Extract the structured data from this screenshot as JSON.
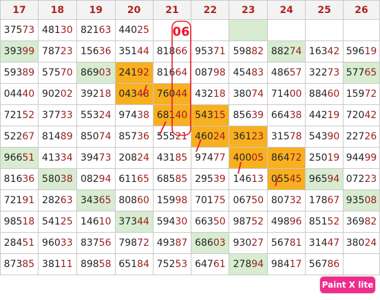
{
  "columns": [
    "17",
    "18",
    "19",
    "20",
    "21",
    "22",
    "23",
    "24",
    "25",
    "26"
  ],
  "rows": [
    [
      {
        "v": "37573"
      },
      {
        "v": "48130"
      },
      {
        "v": "82163"
      },
      {
        "v": "44025"
      },
      {
        "v": ""
      },
      {
        "v": ""
      },
      {
        "v": "",
        "bg": "green"
      },
      {
        "v": ""
      },
      {
        "v": ""
      },
      {
        "v": ""
      }
    ],
    [
      {
        "v": "39399",
        "bg": "green"
      },
      {
        "v": "78723"
      },
      {
        "v": "15636"
      },
      {
        "v": "35144"
      },
      {
        "v": "81866"
      },
      {
        "v": "95371"
      },
      {
        "v": "59882"
      },
      {
        "v": "88274",
        "bg": "green"
      },
      {
        "v": "16342"
      },
      {
        "v": "59619"
      }
    ],
    [
      {
        "v": "59389"
      },
      {
        "v": "57570"
      },
      {
        "v": "86903",
        "bg": "green"
      },
      {
        "v": "24192",
        "bg": "orange"
      },
      {
        "v": "81664"
      },
      {
        "v": "08798"
      },
      {
        "v": "45483"
      },
      {
        "v": "48657"
      },
      {
        "v": "32273"
      },
      {
        "v": "57765",
        "bg": "green"
      }
    ],
    [
      {
        "v": "04440"
      },
      {
        "v": "90202"
      },
      {
        "v": "39218"
      },
      {
        "v": "04348",
        "bg": "orange"
      },
      {
        "v": "76044",
        "bg": "orange"
      },
      {
        "v": "43218"
      },
      {
        "v": "38074"
      },
      {
        "v": "71400"
      },
      {
        "v": "88460"
      },
      {
        "v": "15972"
      }
    ],
    [
      {
        "v": "72152"
      },
      {
        "v": "37733"
      },
      {
        "v": "55324"
      },
      {
        "v": "97438"
      },
      {
        "v": "68140",
        "bg": "orange"
      },
      {
        "v": "54315",
        "bg": "orange"
      },
      {
        "v": "85639"
      },
      {
        "v": "66438"
      },
      {
        "v": "44219"
      },
      {
        "v": "72042"
      }
    ],
    [
      {
        "v": "52267"
      },
      {
        "v": "81489"
      },
      {
        "v": "85074"
      },
      {
        "v": "85736"
      },
      {
        "v": "55521"
      },
      {
        "v": "46024",
        "bg": "orange"
      },
      {
        "v": "36123",
        "bg": "orange"
      },
      {
        "v": "31578"
      },
      {
        "v": "54390"
      },
      {
        "v": "22726"
      }
    ],
    [
      {
        "v": "96651",
        "bg": "green"
      },
      {
        "v": "41334"
      },
      {
        "v": "39473"
      },
      {
        "v": "20824"
      },
      {
        "v": "43185"
      },
      {
        "v": "97477"
      },
      {
        "v": "40005",
        "bg": "orange"
      },
      {
        "v": "86472",
        "bg": "orange"
      },
      {
        "v": "25019"
      },
      {
        "v": "94499"
      }
    ],
    [
      {
        "v": "81636"
      },
      {
        "v": "58038",
        "bg": "green"
      },
      {
        "v": "08294"
      },
      {
        "v": "61165"
      },
      {
        "v": "68585"
      },
      {
        "v": "29539"
      },
      {
        "v": "14613"
      },
      {
        "v": "05545",
        "bg": "orange"
      },
      {
        "v": "96594",
        "bg": "green"
      },
      {
        "v": "07223"
      }
    ],
    [
      {
        "v": "72191"
      },
      {
        "v": "28263"
      },
      {
        "v": "34365",
        "bg": "green"
      },
      {
        "v": "80860"
      },
      {
        "v": "15998"
      },
      {
        "v": "70175"
      },
      {
        "v": "06750"
      },
      {
        "v": "80732"
      },
      {
        "v": "17867"
      },
      {
        "v": "93508",
        "bg": "green"
      }
    ],
    [
      {
        "v": "98518"
      },
      {
        "v": "54125"
      },
      {
        "v": "14610"
      },
      {
        "v": "37344",
        "bg": "green"
      },
      {
        "v": "59430"
      },
      {
        "v": "66350"
      },
      {
        "v": "98752"
      },
      {
        "v": "49896"
      },
      {
        "v": "85152"
      },
      {
        "v": "36982"
      }
    ],
    [
      {
        "v": "28451"
      },
      {
        "v": "96033"
      },
      {
        "v": "83756"
      },
      {
        "v": "79872"
      },
      {
        "v": "49387"
      },
      {
        "v": "68603",
        "bg": "green"
      },
      {
        "v": "93027"
      },
      {
        "v": "56781"
      },
      {
        "v": "31447"
      },
      {
        "v": "38024"
      }
    ],
    [
      {
        "v": "87385"
      },
      {
        "v": "38111"
      },
      {
        "v": "89858"
      },
      {
        "v": "65184"
      },
      {
        "v": "75253"
      },
      {
        "v": "64761"
      },
      {
        "v": "27894",
        "bg": "green"
      },
      {
        "v": "98417"
      },
      {
        "v": "56786"
      },
      {
        "v": ""
      }
    ]
  ],
  "annotation": {
    "text": "06",
    "color": "#e8182a"
  },
  "watermark": {
    "text": "Paint X lite",
    "color": "#f02c8c"
  }
}
